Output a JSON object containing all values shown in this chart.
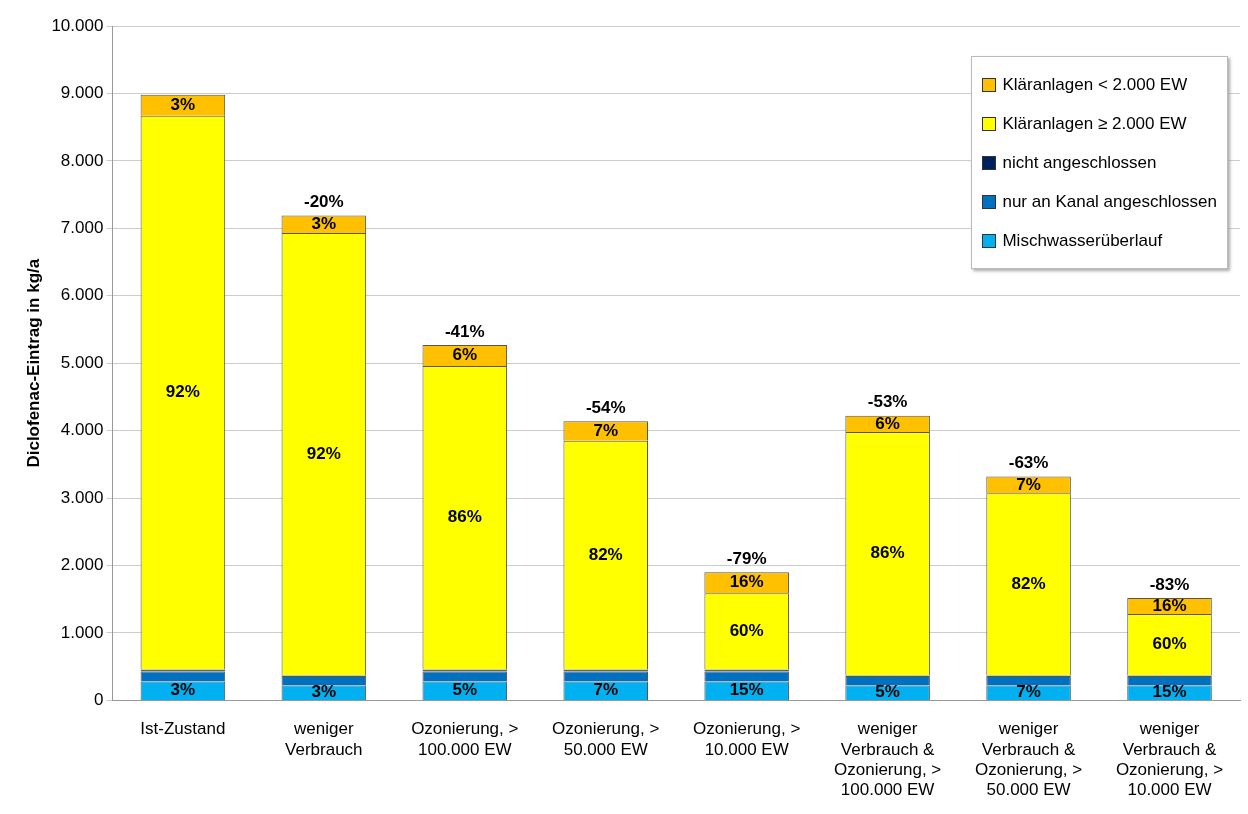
{
  "chart_data": {
    "type": "bar",
    "stacked": true,
    "ylabel": "Diclofenac-Eintrag in kg/a",
    "categories": [
      "Ist-Zustand",
      "weniger Verbrauch",
      "Ozonierung, > 100.000 EW",
      "Ozonierung, > 50.000 EW",
      "Ozonierung, > 10.000 EW",
      "weniger Verbrauch & Ozonierung, > 100.000 EW",
      "weniger Verbrauch & Ozonierung, > 50.000 EW",
      "weniger Verbrauch & Ozonierung, > 10.000 EW"
    ],
    "series": [
      {
        "name": "Mischwasserüberlauf",
        "color": "#00b0f0",
        "values": [
          280,
          220,
          280,
          280,
          280,
          220,
          220,
          220
        ]
      },
      {
        "name": "nur an Kanal angeschlossen",
        "color": "#0070c0",
        "values": [
          150,
          140,
          150,
          150,
          150,
          140,
          140,
          140
        ]
      },
      {
        "name": "nicht angeschlossen",
        "color": "#002060",
        "values": [
          30,
          10,
          30,
          30,
          30,
          10,
          10,
          10
        ]
      },
      {
        "name": "Kläranlagen ≥ 2.000 EW",
        "color": "#ffff00",
        "values": [
          8210,
          6560,
          4500,
          3390,
          1130,
          3610,
          2700,
          910
        ]
      },
      {
        "name": "Kläranlagen < 2.000 EW",
        "color": "#ffc000",
        "values": [
          310,
          260,
          310,
          290,
          310,
          240,
          250,
          240
        ]
      }
    ],
    "annotations": [
      "3%",
      "92%",
      "3%",
      "3%",
      "92%",
      "3%",
      "5%",
      "86%",
      "6%",
      "7%",
      "82%",
      "7%",
      "15%",
      "60%",
      "16%",
      "5%",
      "86%",
      "6%",
      "7%",
      "82%",
      "7%",
      "15%",
      "60%",
      "16%",
      {
        "text": "-20%",
        "x": "weniger Verbrauch",
        "y": 7190
      },
      {
        "text": "-41%",
        "x": "Ozonierung, > 100.000 EW",
        "y": 5270
      },
      {
        "text": "-54%",
        "x": "Ozonierung, > 50.000 EW",
        "y": 4140
      },
      {
        "text": "-79%",
        "x": "Ozonierung, > 10.000 EW",
        "y": 1900
      },
      {
        "text": "-53%",
        "x": "weniger Verbrauch & Ozonierung, > 100.000 EW",
        "y": 4220
      },
      {
        "text": "-63%",
        "x": "weniger Verbrauch & Ozonierung, > 50.000 EW",
        "y": 3320
      },
      {
        "text": "-83%",
        "x": "weniger Verbrauch & Ozonierung, > 10.000 EW",
        "y": 1520
      }
    ],
    "ylim": [
      0,
      10000
    ],
    "yticks": [
      {
        "value": 0,
        "label": "0"
      },
      {
        "value": 1000,
        "label": "1.000"
      },
      {
        "value": 2000,
        "label": "2.000"
      },
      {
        "value": 3000,
        "label": "3.000"
      },
      {
        "value": 4000,
        "label": "4.000"
      },
      {
        "value": 5000,
        "label": "5.000"
      },
      {
        "value": 6000,
        "label": "6.000"
      },
      {
        "value": 7000,
        "label": "7.000"
      },
      {
        "value": 8000,
        "label": "8.000"
      },
      {
        "value": 9000,
        "label": "9.000"
      },
      {
        "value": 10000,
        "label": "10.000"
      }
    ],
    "grid": "y",
    "legend": "top right"
  }
}
